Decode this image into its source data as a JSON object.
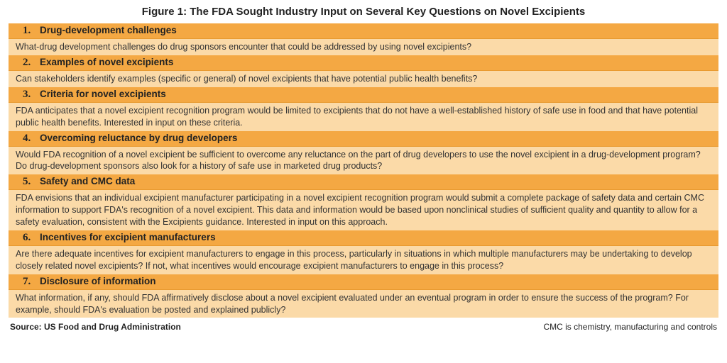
{
  "title": "Figure 1: The FDA Sought Industry Input on Several Key Questions on Novel Excipients",
  "colors": {
    "header_bg": "#f4a843",
    "body_bg": "#fbdaa8",
    "text": "#222222"
  },
  "items": [
    {
      "num": "1.",
      "label": "Drug-development challenges",
      "body": "What-drug development challenges do drug sponsors encounter that could be addressed by using novel excipients?"
    },
    {
      "num": "2.",
      "label": "Examples of novel excipients",
      "body": "Can stakeholders identify examples (specific or general) of novel excipients that have potential public health benefits?"
    },
    {
      "num": "3.",
      "label": "Criteria for novel excipients",
      "body": "FDA anticipates that a novel excipient recognition program would be limited to excipients that do not have a well-established history of safe use in food and that have potential public health benefits. Interested in input on these criteria."
    },
    {
      "num": "4.",
      "label": "Overcoming reluctance by drug developers",
      "body": "Would FDA recognition of a novel excipient be sufficient to overcome any reluctance on the part of drug developers to use the novel excipient in a drug-development program? Do drug-development sponsors also look for a history of safe use in marketed drug products?"
    },
    {
      "num": "5.",
      "label": "Safety and CMC data",
      "body": "FDA envisions that an individual excipient manufacturer participating in a novel excipient recognition program would submit a complete package of safety data and certain CMC information to support FDA's recognition of a novel excipient. This data and information would be based upon nonclinical studies of sufficient quality and quantity to allow for a safety evaluation, consistent with the Excipients guidance. Interested in input on this approach."
    },
    {
      "num": "6.",
      "label": "Incentives for excipient manufacturers",
      "body": "Are there adequate incentives for excipient manufacturers to engage in this process, particularly in situations in which multiple manufacturers may be undertaking to develop closely related novel excipients? If not, what incentives would encourage excipient manufacturers to engage in this process?"
    },
    {
      "num": "7.",
      "label": "Disclosure of information",
      "body": "What information, if any, should FDA affirmatively disclose about a novel excipient evaluated under an eventual program in order to ensure the success of the program? For example, should FDA's evaluation be posted and explained publicly?"
    }
  ],
  "footer": {
    "source": "Source: US Food and Drug Administration",
    "note": "CMC is chemistry, manufacturing and controls"
  }
}
